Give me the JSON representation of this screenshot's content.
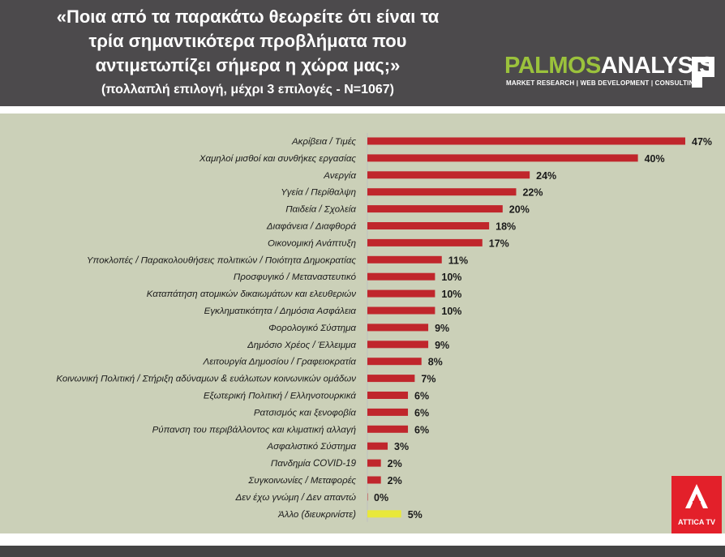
{
  "header": {
    "title_lines": [
      "«Ποια από τα παρακάτω θεωρείτε ότι είναι τα",
      "τρία σημαντικότερα προβλήματα που",
      "αντιμετωπίζει σήμερα η χώρα μας;»"
    ],
    "subtitle": "(πολλαπλή επιλογή, μέχρι 3 επιλογές - N=1067)"
  },
  "logo": {
    "brand_part1": "PALMOS",
    "brand_part2": "ANALYSIS",
    "tagline": "MARKET RESEARCH | WEB DEVELOPMENT | CONSULTING"
  },
  "badge": {
    "text": "ATTICA TV",
    "color": "#e3202a"
  },
  "colors": {
    "bar": "#c0262c",
    "bar_other": "#e8e83a",
    "panel": "#cbd0b8",
    "header": "#4c4a4c"
  },
  "chart_data": {
    "type": "bar",
    "orientation": "horizontal",
    "categories": [
      "Ακρίβεια / Τιμές",
      "Χαμηλοί μισθοί και συνθήκες εργασίας",
      "Ανεργία",
      "Υγεία / Περίθαλψη",
      "Παιδεία / Σχολεία",
      "Διαφάνεια / Διαφθορά",
      "Οικονομική Ανάπτυξη",
      "Υποκλοπές / Παρακολουθήσεις πολιτικών / Ποιότητα Δημοκρατίας",
      "Προσφυγικό / Μεταναστευτικό",
      "Καταπάτηση ατομικών δικαιωμάτων και ελευθεριών",
      "Εγκληματικότητα / Δημόσια Ασφάλεια",
      "Φορολογικό Σύστημα",
      "Δημόσιο Χρέος / Έλλειμμα",
      "Λειτουργία Δημοσίου / Γραφειοκρατία",
      "Κοινωνική Πολιτική / Στήριξη αδύναμων & ευάλωτων κοινωνικών ομάδων",
      "Εξωτερική Πολιτική / Ελληνοτουρκικά",
      "Ρατσισμός και ξενοφοβία",
      "Ρύπανση του περιβάλλοντος και κλιματική αλλαγή",
      "Ασφαλιστικό Σύστημα",
      "Πανδημία COVID-19",
      "Συγκοινωνίες / Μεταφορές",
      "Δεν έχω γνώμη / Δεν απαντώ",
      "Άλλο (διευκρινίστε)"
    ],
    "values": [
      47,
      40,
      24,
      22,
      20,
      18,
      17,
      11,
      10,
      10,
      10,
      9,
      9,
      8,
      7,
      6,
      6,
      6,
      3,
      2,
      2,
      0,
      5
    ],
    "value_labels": [
      "47%",
      "40%",
      "24%",
      "22%",
      "20%",
      "18%",
      "17%",
      "11%",
      "10%",
      "10%",
      "10%",
      "9%",
      "9%",
      "8%",
      "7%",
      "6%",
      "6%",
      "6%",
      "3%",
      "2%",
      "2%",
      "0%",
      "5%"
    ],
    "highlight_index": 22,
    "xlim": [
      0,
      47
    ]
  }
}
